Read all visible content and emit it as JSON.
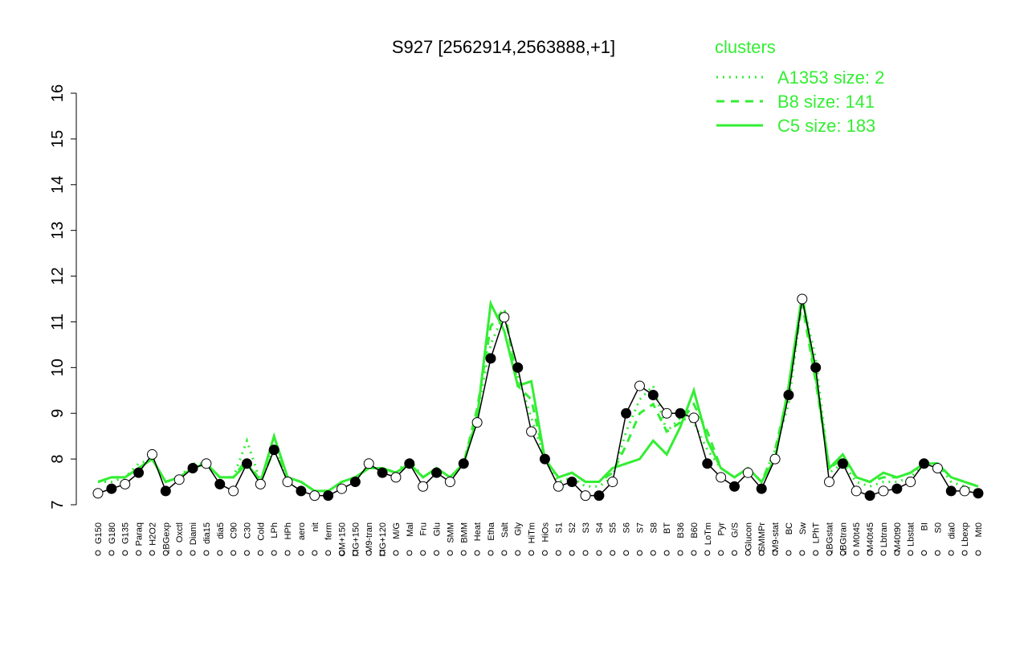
{
  "chart_data": {
    "type": "line",
    "title": "S927 [2562914,2563888,+1]",
    "categories": [
      "G150",
      "G180",
      "G135",
      "Paraq",
      "H2O2",
      "LBGexp",
      "Oxctl",
      "Diami",
      "dia15",
      "dia5",
      "C90",
      "C30",
      "Cold",
      "LPh",
      "HPh",
      "aero",
      "nit",
      "ferm",
      "GM+150",
      "MG+150",
      "M9-tran",
      "MG+120",
      "M/G",
      "Mal",
      "Fru",
      "Glu",
      "SMM",
      "BMM",
      "Heat",
      "Etha",
      "Salt",
      "Gly",
      "HiTm",
      "HiOs",
      "S1",
      "S2",
      "S3",
      "S4",
      "S5",
      "S6",
      "S7",
      "S8",
      "BT",
      "B36",
      "B60",
      "LoTm",
      "Pyr",
      "G/S",
      "Glucon",
      "SMMPr",
      "M9-stat",
      "BC",
      "Sw",
      "LPhT",
      "LBGstat",
      "LBGtran",
      "M0t45",
      "M40t45",
      "Lbtran",
      "M40t90",
      "Lbstat",
      "BI",
      "S0",
      "dia0",
      "Lbexp",
      "Mt0"
    ],
    "values": [
      7.25,
      7.35,
      7.45,
      7.7,
      8.1,
      7.3,
      7.55,
      7.8,
      7.9,
      7.45,
      7.3,
      7.9,
      7.45,
      8.2,
      7.5,
      7.3,
      7.2,
      7.2,
      7.35,
      7.5,
      7.9,
      7.7,
      7.6,
      7.9,
      7.4,
      7.7,
      7.5,
      7.9,
      8.8,
      10.2,
      11.1,
      10.0,
      8.6,
      8.0,
      7.4,
      7.5,
      7.2,
      7.2,
      7.5,
      9.0,
      9.6,
      9.4,
      9.0,
      9.0,
      8.9,
      7.9,
      7.6,
      7.4,
      7.7,
      7.35,
      8.0,
      9.4,
      11.5,
      10.0,
      7.5,
      7.9,
      7.3,
      7.2,
      7.3,
      7.35,
      7.5,
      7.9,
      7.8,
      7.3,
      7.3,
      7.25
    ],
    "color": "#000000",
    "series": [
      {
        "name": "A1353 size: 2",
        "color": "#33ee33",
        "line_style": "dotted",
        "values": [
          7.5,
          7.5,
          7.6,
          7.9,
          8.0,
          7.5,
          7.6,
          7.9,
          7.9,
          7.6,
          7.6,
          8.4,
          7.5,
          8.3,
          7.6,
          7.5,
          7.3,
          7.3,
          7.5,
          7.6,
          7.8,
          7.8,
          7.7,
          8.0,
          7.6,
          7.8,
          7.6,
          7.9,
          9.0,
          10.5,
          11.2,
          9.8,
          8.9,
          8.0,
          7.5,
          7.6,
          7.4,
          7.4,
          7.6,
          8.6,
          9.3,
          9.6,
          8.6,
          8.9,
          8.8,
          8.2,
          7.8,
          7.6,
          7.8,
          7.5,
          8.2,
          9.2,
          11.5,
          10.2,
          7.7,
          7.9,
          7.5,
          7.4,
          7.5,
          7.5,
          7.6,
          7.9,
          7.9,
          7.5,
          7.4,
          7.3
        ]
      },
      {
        "name": "B8 size: 141",
        "color": "#33ee33",
        "line_style": "dashed",
        "values": [
          7.5,
          7.6,
          7.6,
          7.8,
          8.0,
          7.5,
          7.6,
          7.8,
          7.9,
          7.6,
          7.6,
          8.0,
          7.5,
          8.2,
          7.6,
          7.5,
          7.3,
          7.3,
          7.5,
          7.6,
          7.8,
          7.8,
          7.7,
          7.9,
          7.6,
          7.8,
          7.6,
          7.9,
          9.1,
          10.9,
          11.3,
          9.6,
          9.3,
          8.0,
          7.6,
          7.7,
          7.5,
          7.5,
          7.7,
          8.3,
          9.0,
          9.2,
          8.6,
          8.8,
          9.2,
          8.6,
          7.8,
          7.6,
          7.8,
          7.5,
          8.2,
          9.5,
          11.4,
          9.7,
          7.8,
          8.0,
          7.6,
          7.5,
          7.6,
          7.6,
          7.7,
          7.9,
          7.9,
          7.6,
          7.5,
          7.4
        ]
      },
      {
        "name": "C5 size: 183",
        "color": "#33ee33",
        "line_style": "solid",
        "values": [
          7.5,
          7.6,
          7.6,
          7.8,
          8.0,
          7.5,
          7.6,
          7.8,
          7.9,
          7.6,
          7.6,
          7.9,
          7.5,
          8.5,
          7.6,
          7.5,
          7.3,
          7.3,
          7.5,
          7.6,
          7.8,
          7.8,
          7.7,
          7.9,
          7.6,
          7.8,
          7.6,
          7.9,
          8.9,
          11.4,
          10.8,
          9.6,
          9.7,
          8.0,
          7.6,
          7.7,
          7.5,
          7.5,
          7.8,
          7.9,
          8.0,
          8.4,
          8.1,
          8.7,
          9.5,
          8.4,
          7.8,
          7.6,
          7.8,
          7.5,
          8.0,
          9.6,
          11.6,
          9.8,
          7.8,
          8.1,
          7.6,
          7.5,
          7.7,
          7.6,
          7.7,
          7.9,
          7.9,
          7.6,
          7.5,
          7.4
        ]
      }
    ],
    "legend_title": "clusters",
    "legend_position": "upper right",
    "ylim": [
      7,
      16
    ],
    "yticks": [
      7,
      8,
      9,
      10,
      11,
      12,
      13,
      14,
      15,
      16
    ]
  }
}
